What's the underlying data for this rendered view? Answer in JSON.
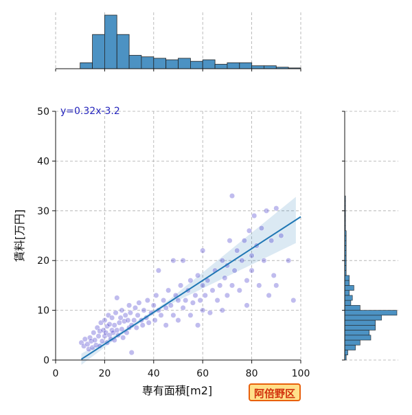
{
  "chart_data": {
    "type": "scatter",
    "xlabel": "専有面積[m2]",
    "ylabel": "賃料[万円]",
    "xlim": [
      0,
      100
    ],
    "ylim": [
      0,
      50
    ],
    "xticks": [
      "0",
      "20",
      "40",
      "60",
      "80",
      "100"
    ],
    "yticks": [
      "0",
      "10",
      "20",
      "30",
      "40",
      "50"
    ],
    "grid": true,
    "equation": "y=0.32x-3.2",
    "regression": {
      "slope": 0.32,
      "intercept": -3.2,
      "x_range": [
        10.5,
        100
      ]
    },
    "colors": {
      "points": "#3b2fc9",
      "regression": "#1f77b4",
      "histogram": "#4c92c3",
      "equation": "#2222bb"
    },
    "scatter_points": [
      [
        10.5,
        3.5
      ],
      [
        11.5,
        2.8
      ],
      [
        12,
        4.2
      ],
      [
        13,
        3.2
      ],
      [
        13.5,
        2.2
      ],
      [
        14,
        4.5
      ],
      [
        14.5,
        3.8
      ],
      [
        15,
        2.5
      ],
      [
        15.5,
        5.5
      ],
      [
        16,
        4.0
      ],
      [
        16.5,
        3.0
      ],
      [
        17,
        6.5
      ],
      [
        17.5,
        4.8
      ],
      [
        18,
        2.8
      ],
      [
        18,
        5.8
      ],
      [
        18.5,
        7.5
      ],
      [
        19,
        3.8
      ],
      [
        19.5,
        6.0
      ],
      [
        20,
        4.8
      ],
      [
        20,
        8.0
      ],
      [
        20.5,
        5.5
      ],
      [
        21,
        3.5
      ],
      [
        21,
        6.8
      ],
      [
        21.5,
        9.0
      ],
      [
        22,
        5.0
      ],
      [
        22,
        7.2
      ],
      [
        22.5,
        4.2
      ],
      [
        23,
        6.0
      ],
      [
        23,
        8.5
      ],
      [
        23.5,
        5.5
      ],
      [
        24,
        7.0
      ],
      [
        24,
        4.0
      ],
      [
        24.5,
        9.5
      ],
      [
        25,
        6.0
      ],
      [
        25,
        12.5
      ],
      [
        25.5,
        5.0
      ],
      [
        26,
        7.5
      ],
      [
        26.5,
        8.5
      ],
      [
        27,
        6.2
      ],
      [
        27,
        10.0
      ],
      [
        27.5,
        4.5
      ],
      [
        28,
        7.8
      ],
      [
        28.5,
        9.0
      ],
      [
        29,
        5.5
      ],
      [
        29.5,
        8.0
      ],
      [
        30,
        6.5
      ],
      [
        30,
        11.0
      ],
      [
        30.5,
        9.5
      ],
      [
        31,
        7.0
      ],
      [
        31,
        1.5
      ],
      [
        32,
        8.0
      ],
      [
        32.5,
        10.5
      ],
      [
        33,
        6.5
      ],
      [
        33.5,
        9.0
      ],
      [
        34,
        11.5
      ],
      [
        35,
        8.0
      ],
      [
        35.5,
        7.0
      ],
      [
        36,
        10.0
      ],
      [
        37,
        8.5
      ],
      [
        37.5,
        12.0
      ],
      [
        38,
        7.5
      ],
      [
        39,
        9.5
      ],
      [
        40,
        11.0
      ],
      [
        40.5,
        8.0
      ],
      [
        41,
        13.0
      ],
      [
        42,
        10.0
      ],
      [
        42,
        18.0
      ],
      [
        43,
        9.0
      ],
      [
        44,
        12.0
      ],
      [
        45,
        10.5
      ],
      [
        45,
        7.0
      ],
      [
        46,
        14.0
      ],
      [
        47,
        11.0
      ],
      [
        48,
        9.0
      ],
      [
        48,
        20.0
      ],
      [
        49,
        13.0
      ],
      [
        50,
        8.0
      ],
      [
        50,
        12.0
      ],
      [
        51,
        15.0
      ],
      [
        52,
        10.5
      ],
      [
        52,
        20.0
      ],
      [
        53,
        12.0
      ],
      [
        54,
        14.0
      ],
      [
        55,
        9.0
      ],
      [
        55,
        16.0
      ],
      [
        56,
        11.5
      ],
      [
        57,
        13.0
      ],
      [
        58,
        7.0
      ],
      [
        58,
        17.0
      ],
      [
        59,
        12.0
      ],
      [
        60,
        10.0
      ],
      [
        60,
        15.0
      ],
      [
        60,
        22.0
      ],
      [
        61,
        13.0
      ],
      [
        62,
        16.0
      ],
      [
        63,
        9.5
      ],
      [
        64,
        14.0
      ],
      [
        65,
        18.0
      ],
      [
        66,
        12.0
      ],
      [
        67,
        15.0
      ],
      [
        68,
        10.0
      ],
      [
        68,
        20.0
      ],
      [
        69,
        16.5
      ],
      [
        70,
        13.0
      ],
      [
        70,
        19.0
      ],
      [
        71,
        24.0
      ],
      [
        72,
        15.0
      ],
      [
        72,
        33.0
      ],
      [
        73,
        18.0
      ],
      [
        74,
        22.0
      ],
      [
        75,
        14.0
      ],
      [
        76,
        20.0
      ],
      [
        77,
        24.0
      ],
      [
        78,
        16.0
      ],
      [
        78,
        11.0
      ],
      [
        79,
        26.0
      ],
      [
        80,
        21.0
      ],
      [
        80,
        18.0
      ],
      [
        81,
        29.0
      ],
      [
        82,
        23.0
      ],
      [
        83,
        15.0
      ],
      [
        84,
        26.5
      ],
      [
        85,
        20.0
      ],
      [
        86,
        30.0
      ],
      [
        87,
        13.0
      ],
      [
        88,
        24.0
      ],
      [
        89,
        17.0
      ],
      [
        90,
        30.5
      ],
      [
        90,
        15.0
      ],
      [
        92,
        25.0
      ],
      [
        95,
        20.0
      ],
      [
        97,
        12.0
      ]
    ],
    "hist_x": {
      "bin_edges": [
        0,
        10,
        15,
        20,
        25,
        30,
        35,
        40,
        45,
        50,
        55,
        60,
        65,
        70,
        75,
        80,
        85,
        90,
        95,
        100
      ],
      "counts": [
        0,
        4,
        23,
        36,
        23,
        9,
        8,
        7,
        6,
        7,
        5,
        6,
        3,
        4,
        4,
        2,
        2,
        1,
        0.5
      ]
    },
    "hist_y": {
      "bin_edges": [
        0,
        1,
        2,
        3,
        4,
        5,
        6,
        7,
        8,
        9,
        10,
        11,
        12,
        13,
        14,
        15,
        16,
        17,
        18,
        19,
        20,
        21,
        22,
        23,
        24,
        25,
        26,
        27,
        28,
        29,
        30,
        31,
        32,
        33
      ],
      "counts": [
        1,
        2,
        7,
        10,
        17,
        16,
        20,
        20,
        24,
        34,
        10,
        4,
        5,
        3,
        6,
        3,
        3,
        1,
        1,
        1,
        1,
        1,
        1,
        1,
        1,
        1,
        0.5,
        0.5,
        0.5,
        0.5,
        0.5,
        0.5,
        0.5
      ]
    }
  },
  "badge": {
    "label": "阿倍野区"
  }
}
